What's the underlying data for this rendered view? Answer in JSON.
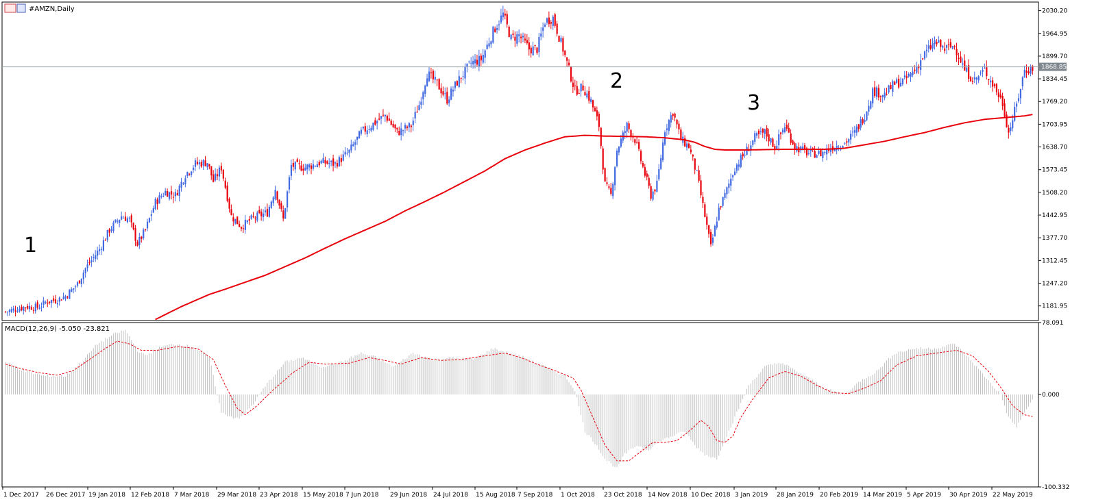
{
  "chart_title": "#AMZN,Daily",
  "indicator_label": "MACD(12,26,9) -5.050 -23.821",
  "price_tag": "1868.85",
  "annotations": [
    "1",
    "2",
    "3"
  ],
  "colors": {
    "bull": "#4169e1",
    "bear": "#e8000b",
    "ma": "#e8000b",
    "macd_hist": "#c0c0c0",
    "signal": "#e8000b",
    "price_line": "#9aa4ac"
  },
  "chart_data": [
    {
      "type": "candlestick",
      "title": "#AMZN,Daily",
      "ylim": [
        1140,
        2055
      ],
      "y_ticks": [
        2030.2,
        1964.95,
        1899.7,
        1834.45,
        1769.2,
        1703.95,
        1638.7,
        1573.45,
        1508.2,
        1442.95,
        1377.7,
        1312.45,
        1247.2,
        1181.95
      ],
      "x_labels": [
        "1 Dec 2017",
        "26 Dec 2017",
        "19 Jan 2018",
        "12 Feb 2018",
        "7 Mar 2018",
        "29 Mar 2018",
        "23 Apr 2018",
        "15 May 2018",
        "7 Jun 2018",
        "29 Jun 2018",
        "24 Jul 2018",
        "15 Aug 2018",
        "7 Sep 2018",
        "1 Oct 2018",
        "23 Oct 2018",
        "14 Nov 2018",
        "10 Dec 2018",
        "3 Jan 2019",
        "28 Jan 2019",
        "20 Feb 2019",
        "14 Mar 2019",
        "5 Apr 2019",
        "30 Apr 2019",
        "22 May 2019"
      ],
      "current_price": 1868.85,
      "close_anchors": [
        [
          0,
          1165
        ],
        [
          10,
          1180
        ],
        [
          16,
          1178
        ],
        [
          21,
          1195
        ],
        [
          26,
          1200
        ],
        [
          30,
          1210
        ],
        [
          36,
          1245
        ],
        [
          40,
          1290
        ],
        [
          47,
          1345
        ],
        [
          52,
          1400
        ],
        [
          58,
          1440
        ],
        [
          62,
          1430
        ],
        [
          66,
          1360
        ],
        [
          70,
          1400
        ],
        [
          75,
          1480
        ],
        [
          80,
          1510
        ],
        [
          85,
          1500
        ],
        [
          90,
          1560
        ],
        [
          95,
          1590
        ],
        [
          101,
          1595
        ],
        [
          104,
          1540
        ],
        [
          108,
          1580
        ],
        [
          113,
          1440
        ],
        [
          118,
          1410
        ],
        [
          124,
          1435
        ],
        [
          131,
          1450
        ],
        [
          135,
          1520
        ],
        [
          139,
          1430
        ],
        [
          143,
          1585
        ],
        [
          150,
          1580
        ],
        [
          158,
          1595
        ],
        [
          165,
          1590
        ],
        [
          172,
          1625
        ],
        [
          178,
          1680
        ],
        [
          184,
          1705
        ],
        [
          190,
          1730
        ],
        [
          196,
          1680
        ],
        [
          203,
          1700
        ],
        [
          207,
          1760
        ],
        [
          211,
          1850
        ],
        [
          216,
          1820
        ],
        [
          221,
          1775
        ],
        [
          226,
          1825
        ],
        [
          233,
          1880
        ],
        [
          238,
          1890
        ],
        [
          244,
          1970
        ],
        [
          249,
          2020
        ],
        [
          253,
          1950
        ],
        [
          257,
          1960
        ],
        [
          262,
          1920
        ],
        [
          266,
          1920
        ],
        [
          270,
          2000
        ],
        [
          274,
          2010
        ],
        [
          279,
          1920
        ],
        [
          285,
          1800
        ],
        [
          289,
          1810
        ],
        [
          293,
          1770
        ],
        [
          297,
          1700
        ],
        [
          300,
          1530
        ],
        [
          303,
          1500
        ],
        [
          306,
          1630
        ],
        [
          311,
          1700
        ],
        [
          315,
          1660
        ],
        [
          319,
          1580
        ],
        [
          323,
          1500
        ],
        [
          326,
          1530
        ],
        [
          330,
          1690
        ],
        [
          334,
          1740
        ],
        [
          338,
          1660
        ],
        [
          342,
          1640
        ],
        [
          346,
          1560
        ],
        [
          350,
          1440
        ],
        [
          353,
          1350
        ],
        [
          357,
          1460
        ],
        [
          360,
          1500
        ],
        [
          365,
          1580
        ],
        [
          370,
          1620
        ],
        [
          375,
          1665
        ],
        [
          380,
          1680
        ],
        [
          385,
          1640
        ],
        [
          390,
          1700
        ],
        [
          395,
          1640
        ],
        [
          402,
          1620
        ],
        [
          408,
          1620
        ],
        [
          414,
          1640
        ],
        [
          420,
          1650
        ],
        [
          425,
          1680
        ],
        [
          430,
          1730
        ],
        [
          434,
          1800
        ],
        [
          440,
          1790
        ],
        [
          445,
          1820
        ],
        [
          450,
          1830
        ],
        [
          455,
          1860
        ],
        [
          460,
          1905
        ],
        [
          465,
          1940
        ],
        [
          470,
          1920
        ],
        [
          475,
          1930
        ],
        [
          480,
          1860
        ],
        [
          485,
          1830
        ],
        [
          490,
          1860
        ],
        [
          495,
          1810
        ],
        [
          499,
          1765
        ],
        [
          502,
          1680
        ],
        [
          506,
          1760
        ],
        [
          510,
          1860
        ],
        [
          514,
          1865
        ]
      ],
      "moving_average_anchors": [
        [
          0,
          1050
        ],
        [
          60,
          1110
        ],
        [
          74,
          1140
        ],
        [
          88,
          1180
        ],
        [
          96,
          1200
        ],
        [
          102,
          1215
        ],
        [
          110,
          1230
        ],
        [
          120,
          1250
        ],
        [
          130,
          1270
        ],
        [
          140,
          1295
        ],
        [
          150,
          1320
        ],
        [
          160,
          1348
        ],
        [
          170,
          1375
        ],
        [
          180,
          1400
        ],
        [
          190,
          1425
        ],
        [
          200,
          1455
        ],
        [
          210,
          1482
        ],
        [
          220,
          1510
        ],
        [
          230,
          1540
        ],
        [
          240,
          1570
        ],
        [
          250,
          1605
        ],
        [
          260,
          1630
        ],
        [
          270,
          1650
        ],
        [
          280,
          1668
        ],
        [
          290,
          1672
        ],
        [
          300,
          1670
        ],
        [
          310,
          1669
        ],
        [
          320,
          1668
        ],
        [
          330,
          1665
        ],
        [
          340,
          1659
        ],
        [
          345,
          1652
        ],
        [
          350,
          1640
        ],
        [
          355,
          1632
        ],
        [
          360,
          1630
        ],
        [
          370,
          1630
        ],
        [
          380,
          1631
        ],
        [
          390,
          1632
        ],
        [
          400,
          1632
        ],
        [
          410,
          1632
        ],
        [
          420,
          1635
        ],
        [
          430,
          1645
        ],
        [
          440,
          1655
        ],
        [
          450,
          1668
        ],
        [
          460,
          1680
        ],
        [
          470,
          1695
        ],
        [
          480,
          1708
        ],
        [
          490,
          1718
        ],
        [
          500,
          1723
        ],
        [
          510,
          1728
        ],
        [
          514,
          1732
        ]
      ]
    },
    {
      "type": "bar",
      "title": "MACD(12,26,9) -5.050 -23.821",
      "ylim": [
        -100.332,
        78.091
      ],
      "y_ticks": [
        78.091,
        0.0,
        -100.332
      ],
      "macd_anchors": [
        [
          0,
          35
        ],
        [
          10,
          25
        ],
        [
          20,
          20
        ],
        [
          30,
          20
        ],
        [
          38,
          35
        ],
        [
          46,
          55
        ],
        [
          54,
          65
        ],
        [
          60,
          70
        ],
        [
          66,
          48
        ],
        [
          70,
          42
        ],
        [
          76,
          50
        ],
        [
          84,
          55
        ],
        [
          94,
          52
        ],
        [
          102,
          40
        ],
        [
          108,
          -20
        ],
        [
          114,
          -25
        ],
        [
          118,
          -25
        ],
        [
          124,
          -10
        ],
        [
          132,
          15
        ],
        [
          140,
          35
        ],
        [
          148,
          40
        ],
        [
          158,
          30
        ],
        [
          168,
          35
        ],
        [
          178,
          45
        ],
        [
          186,
          40
        ],
        [
          194,
          30
        ],
        [
          204,
          45
        ],
        [
          214,
          38
        ],
        [
          224,
          40
        ],
        [
          234,
          38
        ],
        [
          244,
          50
        ],
        [
          252,
          45
        ],
        [
          260,
          40
        ],
        [
          270,
          30
        ],
        [
          280,
          20
        ],
        [
          285,
          5
        ],
        [
          290,
          -40
        ],
        [
          296,
          -55
        ],
        [
          300,
          -70
        ],
        [
          306,
          -80
        ],
        [
          310,
          -65
        ],
        [
          316,
          -55
        ],
        [
          322,
          -60
        ],
        [
          328,
          -50
        ],
        [
          334,
          -45
        ],
        [
          340,
          -40
        ],
        [
          345,
          -55
        ],
        [
          350,
          -65
        ],
        [
          356,
          -70
        ],
        [
          362,
          -40
        ],
        [
          366,
          -20
        ],
        [
          372,
          10
        ],
        [
          380,
          30
        ],
        [
          388,
          35
        ],
        [
          396,
          25
        ],
        [
          404,
          15
        ],
        [
          412,
          5
        ],
        [
          420,
          0
        ],
        [
          428,
          15
        ],
        [
          436,
          25
        ],
        [
          445,
          45
        ],
        [
          455,
          50
        ],
        [
          465,
          50
        ],
        [
          475,
          55
        ],
        [
          482,
          40
        ],
        [
          490,
          20
        ],
        [
          498,
          0
        ],
        [
          502,
          -25
        ],
        [
          506,
          -35
        ],
        [
          510,
          -20
        ],
        [
          514,
          -5
        ]
      ],
      "signal_anchors": [
        [
          0,
          33
        ],
        [
          8,
          28
        ],
        [
          16,
          24
        ],
        [
          26,
          21
        ],
        [
          34,
          26
        ],
        [
          42,
          38
        ],
        [
          50,
          50
        ],
        [
          56,
          58
        ],
        [
          62,
          55
        ],
        [
          68,
          48
        ],
        [
          76,
          48
        ],
        [
          86,
          52
        ],
        [
          96,
          50
        ],
        [
          104,
          38
        ],
        [
          110,
          10
        ],
        [
          116,
          -15
        ],
        [
          120,
          -22
        ],
        [
          126,
          -12
        ],
        [
          134,
          5
        ],
        [
          144,
          24
        ],
        [
          152,
          35
        ],
        [
          160,
          33
        ],
        [
          172,
          34
        ],
        [
          182,
          40
        ],
        [
          190,
          37
        ],
        [
          198,
          33
        ],
        [
          208,
          40
        ],
        [
          218,
          37
        ],
        [
          228,
          38
        ],
        [
          240,
          42
        ],
        [
          250,
          45
        ],
        [
          258,
          40
        ],
        [
          266,
          33
        ],
        [
          276,
          25
        ],
        [
          284,
          18
        ],
        [
          288,
          5
        ],
        [
          294,
          -25
        ],
        [
          300,
          -55
        ],
        [
          306,
          -72
        ],
        [
          312,
          -72
        ],
        [
          318,
          -62
        ],
        [
          324,
          -52
        ],
        [
          330,
          -52
        ],
        [
          336,
          -50
        ],
        [
          342,
          -40
        ],
        [
          348,
          -28
        ],
        [
          352,
          -35
        ],
        [
          356,
          -50
        ],
        [
          360,
          -52
        ],
        [
          364,
          -45
        ],
        [
          368,
          -25
        ],
        [
          374,
          -5
        ],
        [
          382,
          18
        ],
        [
          390,
          25
        ],
        [
          398,
          20
        ],
        [
          406,
          10
        ],
        [
          414,
          2
        ],
        [
          422,
          1
        ],
        [
          430,
          7
        ],
        [
          438,
          15
        ],
        [
          446,
          32
        ],
        [
          456,
          42
        ],
        [
          466,
          45
        ],
        [
          476,
          48
        ],
        [
          484,
          42
        ],
        [
          492,
          25
        ],
        [
          498,
          8
        ],
        [
          504,
          -12
        ],
        [
          510,
          -22
        ],
        [
          514,
          -24
        ]
      ]
    }
  ]
}
